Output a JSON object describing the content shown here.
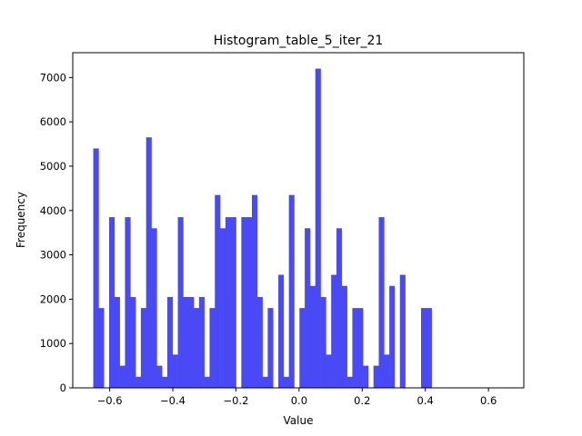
{
  "chart_data": {
    "type": "bar",
    "title": "Histogram_table_5_iter_21",
    "xlabel": "Value",
    "ylabel": "Frequency",
    "xlim": [
      -0.717,
      0.712
    ],
    "ylim": [
      0,
      7560
    ],
    "xticks": [
      -0.6,
      -0.4,
      -0.2,
      0.0,
      0.2,
      0.4,
      0.6
    ],
    "xtick_labels": [
      "−0.6",
      "−0.4",
      "−0.2",
      "0.0",
      "0.2",
      "0.4",
      "0.6"
    ],
    "yticks": [
      0,
      1000,
      2000,
      3000,
      4000,
      5000,
      6000,
      7000
    ],
    "ytick_labels": [
      "0",
      "1000",
      "2000",
      "3000",
      "4000",
      "5000",
      "6000",
      "7000"
    ],
    "bin_start": -0.652,
    "bin_width": 0.01675,
    "values": [
      5400,
      1800,
      0,
      3850,
      2050,
      500,
      3850,
      2050,
      250,
      1800,
      5650,
      3600,
      500,
      250,
      2050,
      750,
      3850,
      2050,
      2050,
      1800,
      2050,
      250,
      1800,
      4350,
      3600,
      3850,
      3850,
      0,
      3850,
      3850,
      4350,
      2050,
      250,
      1800,
      0,
      2550,
      250,
      4350,
      0,
      1800,
      3600,
      2300,
      7200,
      2050,
      750,
      2550,
      3600,
      2300,
      250,
      1800,
      1800,
      500,
      0,
      500,
      3850,
      750,
      2300,
      0,
      2550,
      0,
      0,
      0,
      1800,
      1800
    ],
    "color": "#4949f5",
    "grid": false
  }
}
